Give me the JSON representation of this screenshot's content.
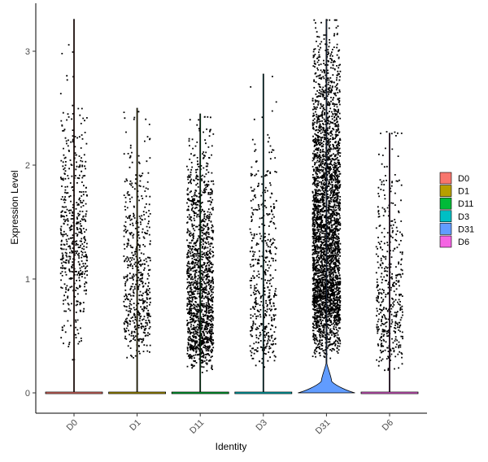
{
  "chart_data": {
    "type": "violin",
    "title": "",
    "xlabel": "Identity",
    "ylabel": "Expression Level",
    "ylim": [
      -0.18,
      3.45
    ],
    "yticks": [
      "0",
      "1",
      "2",
      "3"
    ],
    "categories": [
      "D0",
      "D1",
      "D11",
      "D3",
      "D31",
      "D6"
    ],
    "colors": [
      "#F8766D",
      "#B79F00",
      "#00BA38",
      "#00BFC4",
      "#619CFF",
      "#F564E3"
    ],
    "grid": false,
    "legend_position": "right",
    "legend": [
      "D0",
      "D1",
      "D11",
      "D3",
      "D31",
      "D6"
    ],
    "groups": [
      {
        "name": "D0",
        "max": 3.28,
        "nonzero_range": [
          0.28,
          2.65
        ],
        "violin_peak_width": 0.0
      },
      {
        "name": "D1",
        "max": 2.5,
        "nonzero_range": [
          0.25,
          2.4
        ],
        "violin_peak_width": 0.0
      },
      {
        "name": "D11",
        "max": 2.45,
        "nonzero_range": [
          0.18,
          2.4
        ],
        "violin_peak_width": 0.0
      },
      {
        "name": "D3",
        "max": 2.8,
        "nonzero_range": [
          0.18,
          2.4
        ],
        "violin_peak_width": 0.0
      },
      {
        "name": "D31",
        "max": 3.28,
        "nonzero_range": [
          0.28,
          3.28
        ],
        "violin_peak_width": 0.46
      },
      {
        "name": "D6",
        "max": 2.28,
        "nonzero_range": [
          0.18,
          2.3
        ],
        "violin_peak_width": 0.0
      }
    ]
  }
}
